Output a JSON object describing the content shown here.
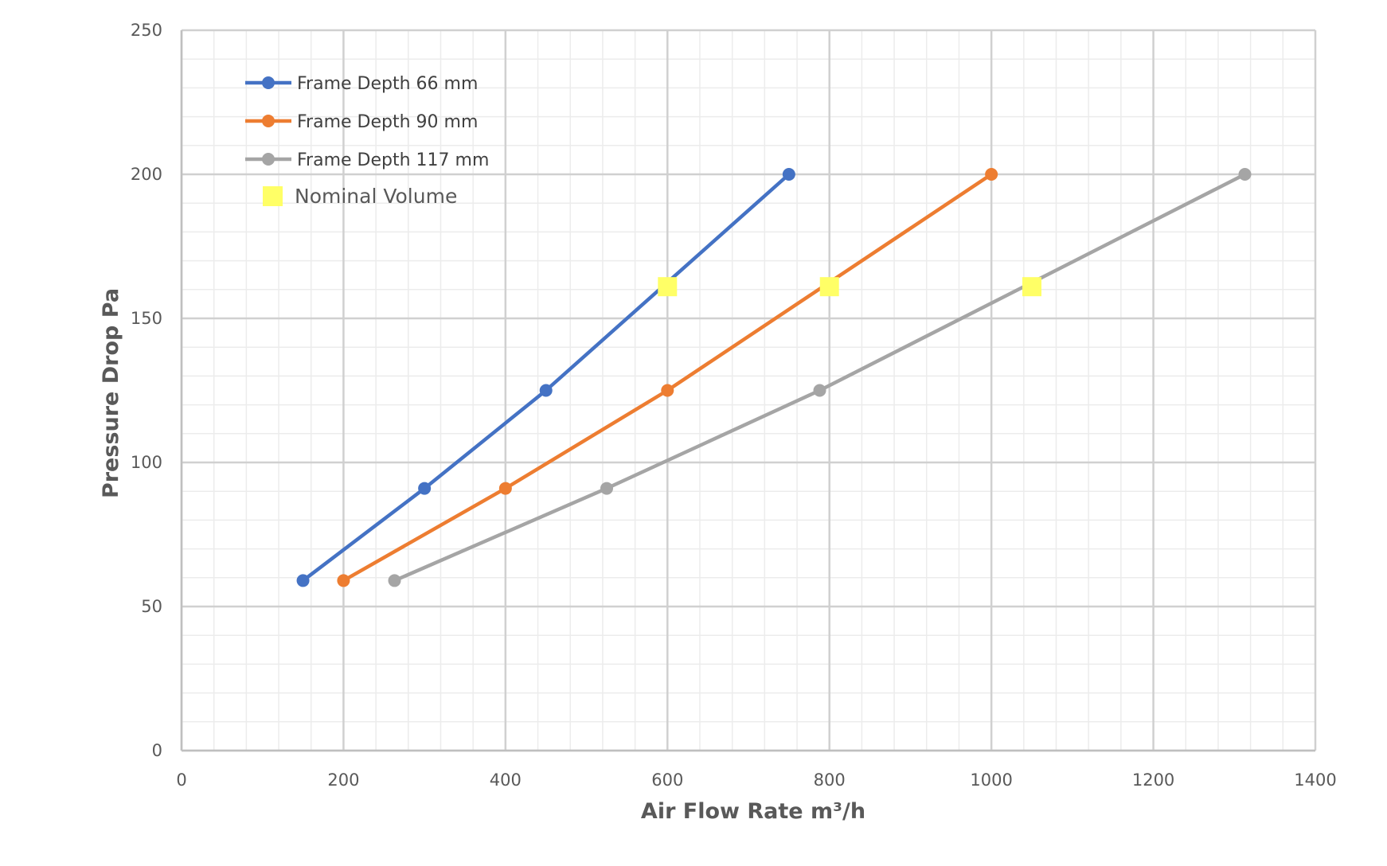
{
  "chart_data": {
    "type": "line",
    "title": "",
    "xlabel": "Air Flow Rate m³/h",
    "ylabel": "Pressure Drop Pa",
    "xlim": [
      0,
      1400
    ],
    "ylim": [
      0,
      250
    ],
    "x_ticks": [
      "0",
      "200",
      "400",
      "600",
      "800",
      "1000",
      "1200",
      "1400"
    ],
    "y_ticks": [
      "0",
      "50",
      "100",
      "150",
      "200",
      "250"
    ],
    "x_major_step": 200,
    "x_minor_step": 40,
    "y_major_step": 50,
    "y_minor_step": 10,
    "grid": true,
    "legend_position": "top-left",
    "series": [
      {
        "name": "Frame Depth 66 mm",
        "color": "#4472c4",
        "points": [
          [
            150,
            59
          ],
          [
            300,
            91
          ],
          [
            450,
            125
          ],
          [
            750,
            200
          ]
        ]
      },
      {
        "name": "Frame Depth 90 mm",
        "color": "#ed7d31",
        "points": [
          [
            200,
            59
          ],
          [
            400,
            91
          ],
          [
            600,
            125
          ],
          [
            1000,
            200
          ]
        ]
      },
      {
        "name": "Frame Depth 117 mm",
        "color": "#a5a5a5",
        "points": [
          [
            263,
            59
          ],
          [
            525,
            91
          ],
          [
            788,
            125
          ],
          [
            1313,
            200
          ]
        ]
      }
    ],
    "markers": {
      "name": "Nominal Volume",
      "color": "#ffff66",
      "points": [
        [
          600,
          161
        ],
        [
          800,
          161
        ],
        [
          1050,
          161
        ]
      ]
    }
  }
}
